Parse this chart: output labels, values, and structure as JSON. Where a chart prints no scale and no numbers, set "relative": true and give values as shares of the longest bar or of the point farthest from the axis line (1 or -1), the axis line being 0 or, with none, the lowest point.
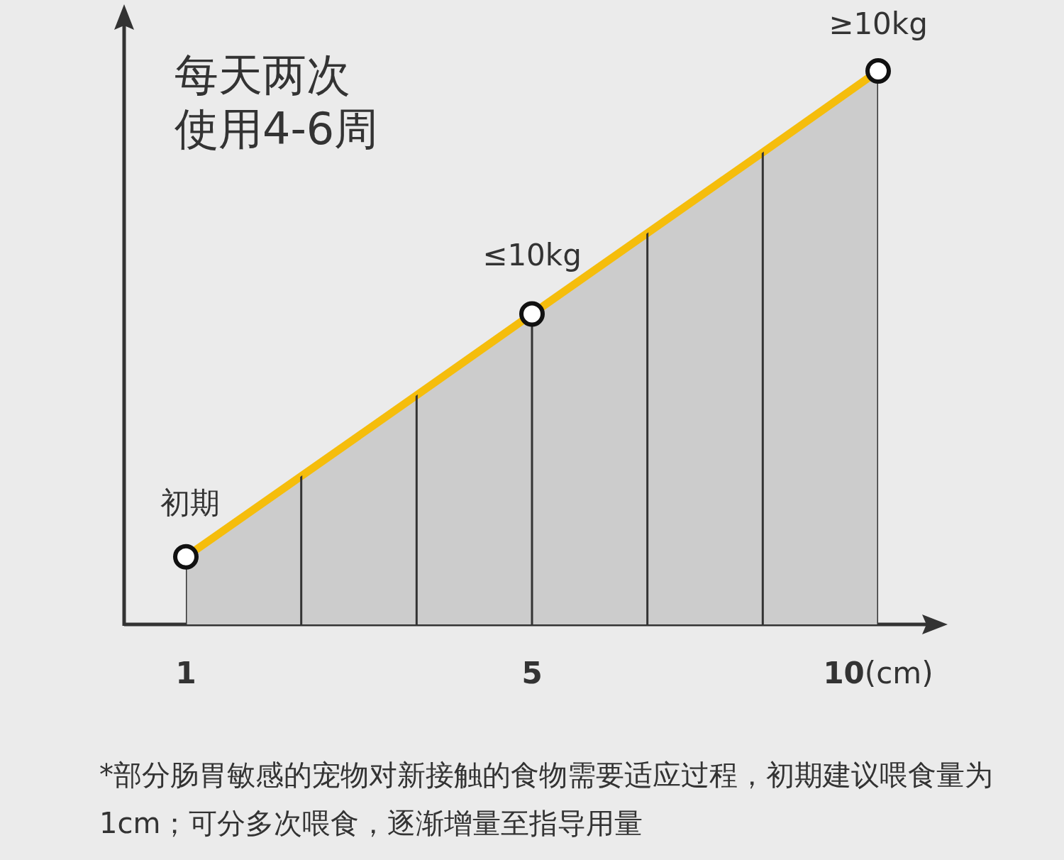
{
  "chart_data": {
    "type": "area",
    "relative": true,
    "grid": "x",
    "categories": [
      "1",
      null,
      null,
      "5",
      null,
      null,
      "**10**(cm)"
    ],
    "series": [
      {
        "type": "area",
        "color": "#f5bd0c",
        "values": [
          0.122,
          0.268,
          0.414,
          0.561,
          0.707,
          0.853,
          1
        ]
      },
      {
        "type": "scatter",
        "color": "#ffffff",
        "marker": "circle",
        "values": [
          0.122,
          null,
          null,
          0.561,
          null,
          null,
          1
        ]
      }
    ],
    "annotations": [
      "每天两次",
      "使用4-6周",
      {
        "text": "初期",
        "x": "1",
        "y": 0.122
      },
      {
        "text": "≤10kg",
        "x": "5",
        "y": 0.561
      },
      {
        "text": "≥10kg",
        "x": "**10**(cm)",
        "y": 1
      },
      "*部分肠胃敏感的宠物对新接触的食物需要适应过程，初期建议喂食量为1cm；可分多次喂食，逐渐增量至指导用量"
    ]
  }
}
